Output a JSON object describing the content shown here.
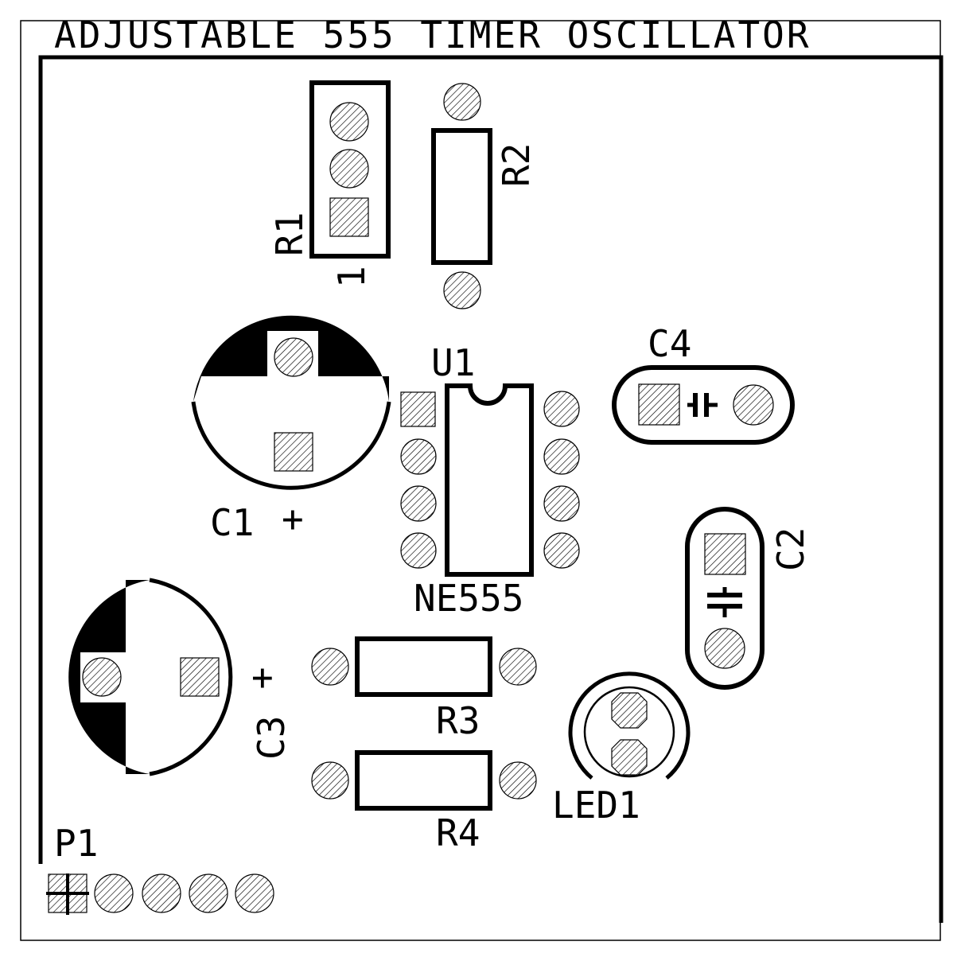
{
  "title": "ADJUSTABLE 555 TIMER OSCILLATOR",
  "labels": {
    "r1": "R1",
    "r1_pin": "1",
    "r2": "R2",
    "u1": "U1",
    "u1_value": "NE555",
    "c1": "C1",
    "c1_polarity": "+",
    "c2": "C2",
    "c3": "C3",
    "c3_polarity": "+",
    "c4": "C4",
    "r3": "R3",
    "r4": "R4",
    "led1": "LED1",
    "p1": "P1"
  },
  "colors": {
    "ink": "#000000",
    "board": "#ffffff"
  }
}
